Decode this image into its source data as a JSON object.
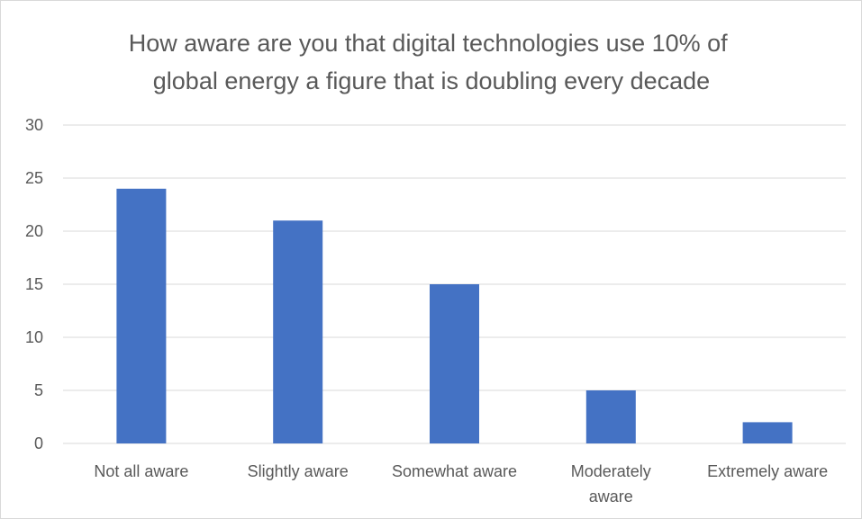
{
  "chart_data": {
    "type": "bar",
    "title_lines": [
      "How aware are you that digital technologies use 10% of",
      "global energy a figure that is doubling every decade"
    ],
    "categories": [
      "Not all aware",
      "Slightly aware",
      "Somewhat aware",
      "Moderately aware",
      "Extremely aware"
    ],
    "category_label_lines": [
      [
        "Not all aware"
      ],
      [
        "Slightly aware"
      ],
      [
        "Somewhat aware"
      ],
      [
        "Moderately",
        "aware"
      ],
      [
        "Extremely aware"
      ]
    ],
    "values": [
      24,
      21,
      15,
      5,
      2
    ],
    "ylim": [
      0,
      30
    ],
    "yticks": [
      0,
      5,
      10,
      15,
      20,
      25,
      30
    ],
    "grid": true,
    "legend": "none",
    "xlabel": "",
    "ylabel": "",
    "colors": {
      "bar": "#4472c4",
      "grid": "#d9d9d9",
      "text": "#595959"
    }
  }
}
